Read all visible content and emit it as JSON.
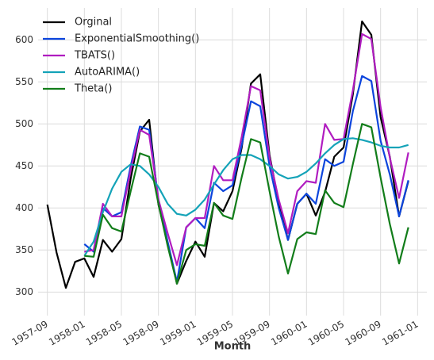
{
  "chart_data": {
    "type": "line",
    "xlabel": "Month",
    "x": [
      "1957-09",
      "1957-10",
      "1957-11",
      "1957-12",
      "1958-01",
      "1958-02",
      "1958-03",
      "1958-04",
      "1958-05",
      "1958-06",
      "1958-07",
      "1958-08",
      "1958-09",
      "1958-10",
      "1958-11",
      "1958-12",
      "1959-01",
      "1959-02",
      "1959-03",
      "1959-04",
      "1959-05",
      "1959-06",
      "1959-07",
      "1959-08",
      "1959-09",
      "1959-10",
      "1959-11",
      "1959-12",
      "1960-01",
      "1960-02",
      "1960-03",
      "1960-04",
      "1960-05",
      "1960-06",
      "1960-07",
      "1960-08",
      "1960-09",
      "1960-10",
      "1960-11",
      "1960-12"
    ],
    "xlim": [
      "1957-08",
      "1961-02"
    ],
    "xticks": [
      "1957-09",
      "1958-01",
      "1958-05",
      "1958-09",
      "1959-01",
      "1959-05",
      "1959-09",
      "1960-01",
      "1960-05",
      "1960-09",
      "1961-01"
    ],
    "ylim": [
      272,
      638
    ],
    "yticks": [
      300,
      350,
      400,
      450,
      500,
      550,
      600
    ],
    "grid": true,
    "legend": "upper left",
    "series": [
      {
        "name": "Orginal",
        "color": "#000000",
        "values": [
          404,
          347,
          305,
          336,
          340,
          318,
          362,
          348,
          363,
          435,
          491,
          505,
          404,
          359,
          310,
          337,
          360,
          342,
          406,
          396,
          420,
          472,
          548,
          559,
          463,
          407,
          362,
          405,
          417,
          391,
          419,
          461,
          472,
          535,
          622,
          606,
          508,
          461,
          390,
          432
        ]
      },
      {
        "name": "ExponentialSmoothing()",
        "color": "#0c45dd",
        "values": [
          null,
          null,
          null,
          null,
          357,
          348,
          400,
          390,
          395,
          450,
          497,
          493,
          410,
          360,
          312,
          377,
          388,
          376,
          430,
          420,
          427,
          475,
          527,
          521,
          450,
          400,
          362,
          405,
          417,
          405,
          458,
          450,
          455,
          515,
          557,
          551,
          480,
          440,
          390,
          433
        ]
      },
      {
        "name": "TBATS()",
        "color": "#b01cc0",
        "values": [
          null,
          null,
          null,
          null,
          348,
          350,
          405,
          390,
          390,
          445,
          493,
          487,
          410,
          370,
          332,
          377,
          388,
          388,
          450,
          433,
          433,
          485,
          545,
          540,
          460,
          410,
          370,
          420,
          432,
          430,
          500,
          481,
          482,
          540,
          607,
          601,
          520,
          460,
          412,
          466
        ]
      },
      {
        "name": "AutoARIMA()",
        "color": "#14a3b8",
        "values": [
          null,
          null,
          null,
          null,
          343,
          360,
          395,
          423,
          443,
          452,
          450,
          440,
          425,
          405,
          393,
          391,
          398,
          410,
          428,
          445,
          458,
          463,
          463,
          458,
          450,
          440,
          435,
          437,
          443,
          453,
          465,
          475,
          482,
          483,
          481,
          478,
          474,
          472,
          472,
          475
        ]
      },
      {
        "name": "Theta()",
        "color": "#127d1a",
        "values": [
          null,
          null,
          null,
          null,
          343,
          342,
          392,
          376,
          372,
          420,
          465,
          461,
          405,
          355,
          310,
          350,
          357,
          355,
          406,
          391,
          387,
          437,
          482,
          478,
          420,
          366,
          322,
          363,
          371,
          369,
          421,
          406,
          401,
          452,
          500,
          496,
          436,
          381,
          334,
          377
        ]
      }
    ]
  }
}
